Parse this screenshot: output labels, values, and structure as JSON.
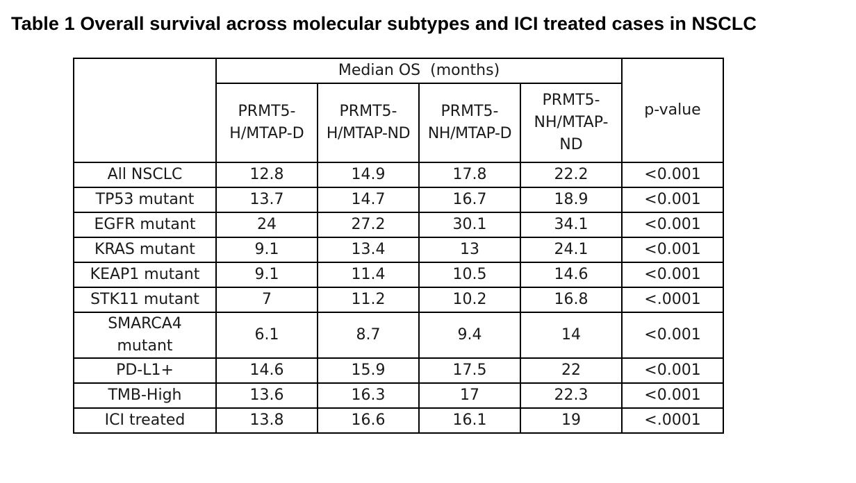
{
  "title": "Table 1 Overall survival across molecular subtypes and ICI treated cases in NSCLC",
  "table": {
    "group_header": "Median OS  (months)",
    "columns": [
      "PRMT5-H/MTAP-D",
      "PRMT5-H/MTAP-ND",
      "PRMT5-NH/MTAP-D",
      "PRMT5-NH/MTAP-ND"
    ],
    "column_lines": [
      [
        "PRMT5-",
        "H/MTAP-D"
      ],
      [
        "PRMT5-",
        "H/MTAP-ND"
      ],
      [
        "PRMT5-",
        "NH/MTAP-D"
      ],
      [
        "PRMT5-",
        "NH/MTAP-",
        "ND"
      ]
    ],
    "pvalue_header": "p-value",
    "rows": [
      {
        "label": "All NSCLC",
        "values": [
          "12.8",
          "14.9",
          "17.8",
          "22.2"
        ],
        "p": "<0.001"
      },
      {
        "label": "TP53 mutant",
        "values": [
          "13.7",
          "14.7",
          "16.7",
          "18.9"
        ],
        "p": "<0.001"
      },
      {
        "label": "EGFR mutant",
        "values": [
          "24",
          "27.2",
          "30.1",
          "34.1"
        ],
        "p": "<0.001"
      },
      {
        "label": "KRAS mutant",
        "values": [
          "9.1",
          "13.4",
          "13",
          "24.1"
        ],
        "p": "<0.001"
      },
      {
        "label": "KEAP1 mutant",
        "values": [
          "9.1",
          "11.4",
          "10.5",
          "14.6"
        ],
        "p": "<0.001"
      },
      {
        "label": "STK11 mutant",
        "values": [
          "7",
          "11.2",
          "10.2",
          "16.8"
        ],
        "p": "<.0001"
      },
      {
        "label": "SMARCA4 mutant",
        "label_lines": [
          "SMARCA4",
          "mutant"
        ],
        "values": [
          "6.1",
          "8.7",
          "9.4",
          "14"
        ],
        "p": "<0.001"
      },
      {
        "label": "PD-L1+",
        "values": [
          "14.6",
          "15.9",
          "17.5",
          "22"
        ],
        "p": "<0.001"
      },
      {
        "label": "TMB-High",
        "values": [
          "13.6",
          "16.3",
          "17",
          "22.3"
        ],
        "p": "<0.001"
      },
      {
        "label": "ICI treated",
        "values": [
          "13.8",
          "16.6",
          "16.1",
          "19"
        ],
        "p": "<.0001"
      }
    ]
  }
}
